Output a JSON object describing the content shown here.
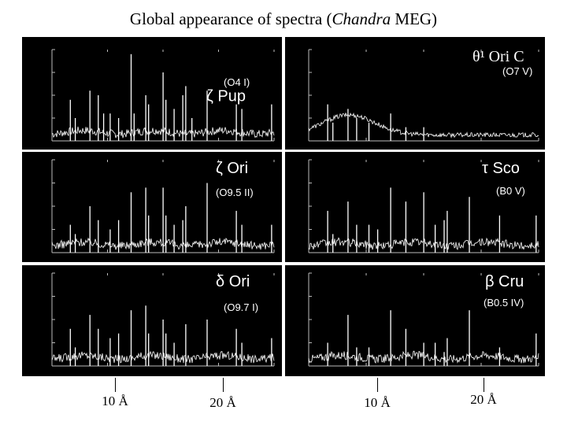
{
  "slide": {
    "title_prefix": "Global appearance of spectra (",
    "title_italic": "Chandra",
    "title_suffix": " MEG)"
  },
  "markers": [
    "10 Å",
    "20 Å",
    "10 Å",
    "20 Å"
  ],
  "chart_data": [
    {
      "type": "line",
      "star": "ζ Pup",
      "spectral_type": "(O4 I)",
      "xlim": [
        5,
        25
      ],
      "lines": [
        [
          6.65,
          0.45
        ],
        [
          7.1,
          0.25
        ],
        [
          8.42,
          0.55
        ],
        [
          9.17,
          0.5
        ],
        [
          9.65,
          0.3
        ],
        [
          10.24,
          0.3
        ],
        [
          11.0,
          0.25
        ],
        [
          12.13,
          0.95
        ],
        [
          12.4,
          0.3
        ],
        [
          13.45,
          0.5
        ],
        [
          13.7,
          0.4
        ],
        [
          15.01,
          0.75
        ],
        [
          15.26,
          0.45
        ],
        [
          16.0,
          0.35
        ],
        [
          16.78,
          0.5
        ],
        [
          17.05,
          0.6
        ],
        [
          17.6,
          0.25
        ],
        [
          18.97,
          0.55
        ],
        [
          21.6,
          0.4
        ],
        [
          22.1,
          0.35
        ],
        [
          24.78,
          0.4
        ]
      ]
    },
    {
      "type": "line",
      "star": "θ¹ Ori C",
      "spectral_type": "(O7 V)",
      "xlim": [
        5,
        25
      ],
      "lines": [
        [
          6.65,
          0.4
        ],
        [
          7.1,
          0.2
        ],
        [
          8.42,
          0.35
        ],
        [
          9.17,
          0.25
        ],
        [
          10.24,
          0.2
        ],
        [
          12.13,
          0.3
        ],
        [
          13.45,
          0.15
        ],
        [
          15.01,
          0.15
        ]
      ]
    },
    {
      "type": "line",
      "star": "ζ Ori",
      "spectral_type": "(O9.5 II)",
      "xlim": [
        5,
        25
      ],
      "lines": [
        [
          6.65,
          0.3
        ],
        [
          7.1,
          0.2
        ],
        [
          8.42,
          0.5
        ],
        [
          9.17,
          0.35
        ],
        [
          10.24,
          0.25
        ],
        [
          11.0,
          0.35
        ],
        [
          12.13,
          0.65
        ],
        [
          13.45,
          0.7
        ],
        [
          13.7,
          0.4
        ],
        [
          15.01,
          0.7
        ],
        [
          15.26,
          0.4
        ],
        [
          16.0,
          0.3
        ],
        [
          16.78,
          0.35
        ],
        [
          17.05,
          0.5
        ],
        [
          18.97,
          0.75
        ],
        [
          21.6,
          0.45
        ],
        [
          22.1,
          0.3
        ],
        [
          24.78,
          0.3
        ]
      ]
    },
    {
      "type": "line",
      "star": "τ Sco",
      "spectral_type": "(B0 V)",
      "xlim": [
        5,
        25
      ],
      "lines": [
        [
          6.65,
          0.45
        ],
        [
          7.1,
          0.2
        ],
        [
          8.42,
          0.55
        ],
        [
          9.17,
          0.3
        ],
        [
          10.24,
          0.3
        ],
        [
          11.0,
          0.25
        ],
        [
          12.13,
          0.7
        ],
        [
          13.45,
          0.55
        ],
        [
          15.01,
          0.65
        ],
        [
          16.0,
          0.3
        ],
        [
          16.78,
          0.35
        ],
        [
          17.05,
          0.45
        ],
        [
          18.97,
          0.6
        ],
        [
          21.6,
          0.4
        ],
        [
          24.78,
          0.4
        ]
      ]
    },
    {
      "type": "line",
      "star": "δ Ori",
      "spectral_type": "(O9.7 I)",
      "xlim": [
        5,
        25
      ],
      "lines": [
        [
          6.65,
          0.4
        ],
        [
          7.1,
          0.2
        ],
        [
          8.42,
          0.55
        ],
        [
          9.17,
          0.4
        ],
        [
          10.24,
          0.3
        ],
        [
          11.0,
          0.35
        ],
        [
          12.13,
          0.6
        ],
        [
          13.45,
          0.65
        ],
        [
          13.7,
          0.35
        ],
        [
          15.01,
          0.5
        ],
        [
          15.26,
          0.35
        ],
        [
          16.0,
          0.25
        ],
        [
          17.05,
          0.45
        ],
        [
          18.97,
          0.5
        ],
        [
          21.6,
          0.4
        ],
        [
          22.1,
          0.25
        ],
        [
          24.78,
          0.3
        ]
      ]
    },
    {
      "type": "line",
      "star": "β Cru",
      "spectral_type": "(B0.5 IV)",
      "xlim": [
        5,
        25
      ],
      "lines": [
        [
          6.65,
          0.25
        ],
        [
          8.42,
          0.55
        ],
        [
          9.17,
          0.2
        ],
        [
          10.24,
          0.2
        ],
        [
          12.13,
          0.6
        ],
        [
          13.45,
          0.4
        ],
        [
          15.01,
          0.25
        ],
        [
          16.0,
          0.25
        ],
        [
          16.78,
          0.15
        ],
        [
          17.05,
          0.3
        ],
        [
          18.97,
          0.6
        ],
        [
          21.6,
          0.2
        ],
        [
          24.78,
          0.35
        ]
      ]
    }
  ]
}
